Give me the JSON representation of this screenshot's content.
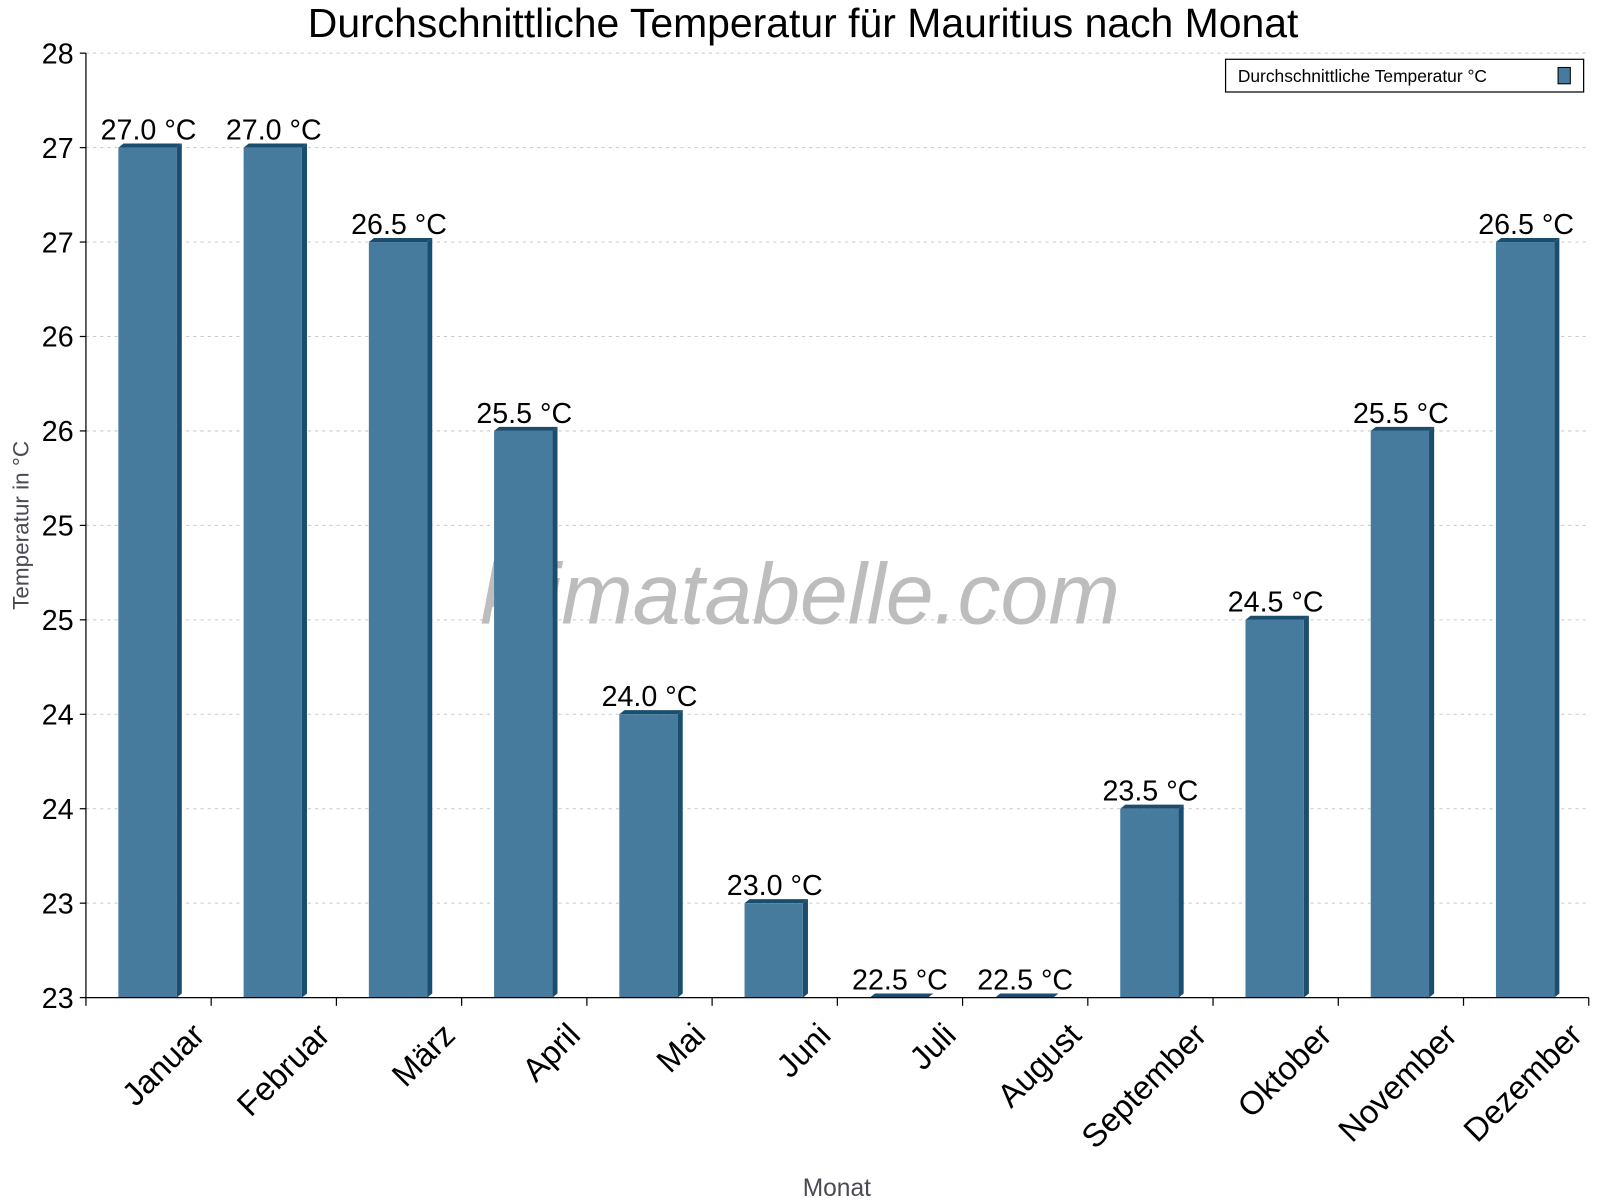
{
  "chart_data": {
    "type": "bar",
    "title": "Durchschnittliche Temperatur für Mauritius nach Monat",
    "xlabel": "Monat",
    "ylabel": "Temperatur in °C",
    "categories": [
      "Januar",
      "Februar",
      "März",
      "April",
      "Mai",
      "Juni",
      "Juli",
      "August",
      "September",
      "Oktober",
      "November",
      "Dezember"
    ],
    "series": [
      {
        "name": "Durchschnittliche Temperatur °C",
        "values": [
          27.0,
          27.0,
          26.5,
          25.5,
          24.0,
          23.0,
          22.5,
          22.5,
          23.5,
          24.5,
          25.5,
          26.5
        ],
        "labels": [
          "27.0 °C",
          "27.0 °C",
          "26.5 °C",
          "25.5 °C",
          "24.0 °C",
          "23.0 °C",
          "22.5 °C",
          "22.5 °C",
          "23.5 °C",
          "24.5 °C",
          "25.5 °C",
          "26.5 °C"
        ]
      }
    ],
    "ylim": [
      22.5,
      27.5
    ],
    "yticks": [
      22.5,
      23.0,
      23.5,
      24.0,
      24.5,
      25.0,
      25.5,
      26.0,
      26.5,
      27.0,
      27.5
    ],
    "ytick_labels": [
      "23",
      "23",
      "24",
      "24",
      "25",
      "25",
      "26",
      "26",
      "27",
      "27",
      "28"
    ],
    "grid": true,
    "legend_position": "top-right",
    "watermark": "klimatabelle.com",
    "colors": {
      "bar": "#467b9d",
      "bar_dark": "#1b4e6e",
      "grid": "#c8c8c8"
    }
  }
}
